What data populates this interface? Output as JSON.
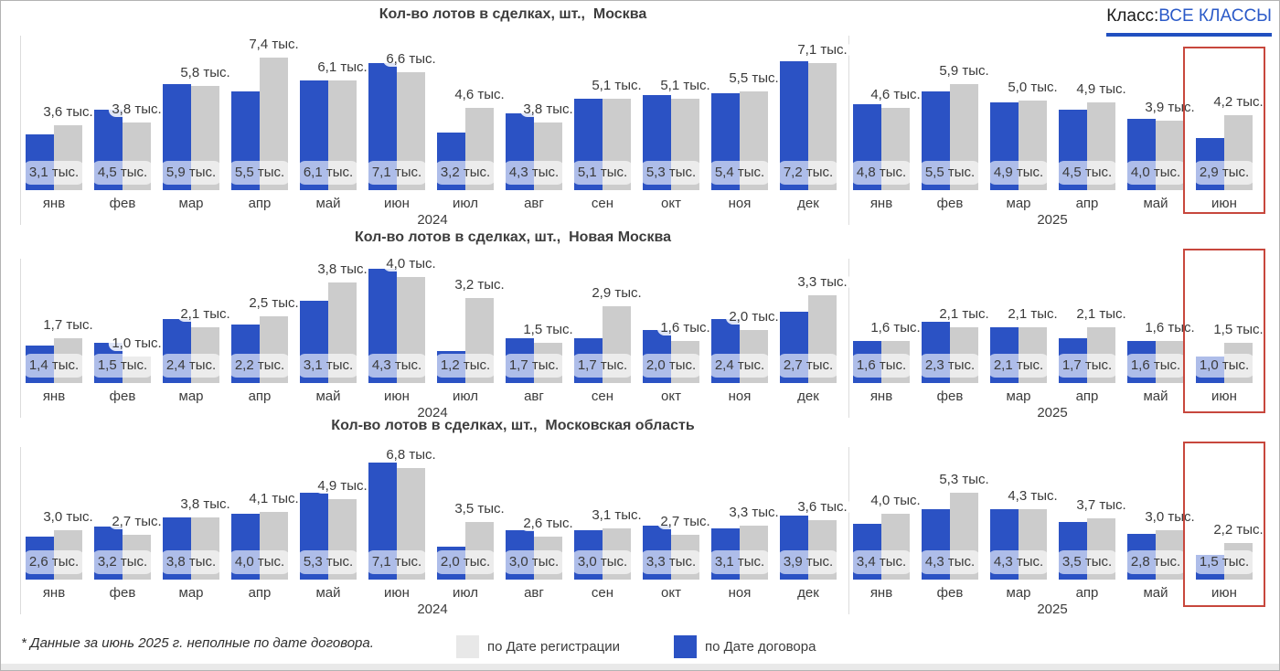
{
  "header": {
    "class_label": "Класс:",
    "class_value": "ВСЕ КЛАССЫ",
    "accent_color": "#2b52c4"
  },
  "footer": {
    "footnote": "* Данные за июнь 2025 г. неполные по дате договора.",
    "legend": [
      {
        "label": "по Дате регистрации",
        "color": "#e8e8e8"
      },
      {
        "label": "по Дате договора",
        "color": "#2b52c4"
      }
    ]
  },
  "unit_suffix": " тыс.",
  "highlight": {
    "month_index": 17,
    "note": "июнь 2025 выделен красной рамкой",
    "color": "#c7473d"
  },
  "chart_data": [
    {
      "type": "bar",
      "title": "Кол-во лотов в сделках, шт.,  Москва",
      "categories": [
        "янв",
        "фев",
        "мар",
        "апр",
        "май",
        "июн",
        "июл",
        "авг",
        "сен",
        "окт",
        "ноя",
        "дек",
        "янв",
        "фев",
        "мар",
        "апр",
        "май",
        "июн"
      ],
      "year_groups": [
        {
          "label": "2024",
          "months": 12
        },
        {
          "label": "2025",
          "months": 6
        }
      ],
      "value_suffix": " тыс.",
      "series": [
        {
          "name": "по Дате договора",
          "color": "#2b52c4",
          "values": [
            3.1,
            4.5,
            5.9,
            5.5,
            6.1,
            7.1,
            3.2,
            4.3,
            5.1,
            5.3,
            5.4,
            7.2,
            4.8,
            5.5,
            4.9,
            4.5,
            4.0,
            2.9
          ]
        },
        {
          "name": "по Дате регистрации",
          "color": "#cccccc",
          "values": [
            3.6,
            3.8,
            5.8,
            7.4,
            6.1,
            6.6,
            4.6,
            3.8,
            5.1,
            5.1,
            5.5,
            7.1,
            4.6,
            5.9,
            5.0,
            4.9,
            3.9,
            4.2
          ]
        }
      ]
    },
    {
      "type": "bar",
      "title": "Кол-во лотов в сделках, шт.,  Новая Москва",
      "categories": [
        "янв",
        "фев",
        "мар",
        "апр",
        "май",
        "июн",
        "июл",
        "авг",
        "сен",
        "окт",
        "ноя",
        "дек",
        "янв",
        "фев",
        "мар",
        "апр",
        "май",
        "июн"
      ],
      "year_groups": [
        {
          "label": "2024",
          "months": 12
        },
        {
          "label": "2025",
          "months": 6
        }
      ],
      "value_suffix": " тыс.",
      "series": [
        {
          "name": "по Дате договора",
          "color": "#2b52c4",
          "values": [
            1.4,
            1.5,
            2.4,
            2.2,
            3.1,
            4.3,
            1.2,
            1.7,
            1.7,
            2.0,
            2.4,
            2.7,
            1.6,
            2.3,
            2.1,
            1.7,
            1.6,
            1.0
          ]
        },
        {
          "name": "по Дате регистрации",
          "color": "#cccccc",
          "values": [
            1.7,
            1.0,
            2.1,
            2.5,
            3.8,
            4.0,
            3.2,
            1.5,
            2.9,
            1.6,
            2.0,
            3.3,
            1.6,
            2.1,
            2.1,
            2.1,
            1.6,
            1.5
          ]
        }
      ]
    },
    {
      "type": "bar",
      "title": "Кол-во лотов в сделках, шт.,  Московская область",
      "categories": [
        "янв",
        "фев",
        "мар",
        "апр",
        "май",
        "июн",
        "июл",
        "авг",
        "сен",
        "окт",
        "ноя",
        "дек",
        "янв",
        "фев",
        "мар",
        "апр",
        "май",
        "июн"
      ],
      "year_groups": [
        {
          "label": "2024",
          "months": 12
        },
        {
          "label": "2025",
          "months": 6
        }
      ],
      "value_suffix": " тыс.",
      "series": [
        {
          "name": "по Дате договора",
          "color": "#2b52c4",
          "values": [
            2.6,
            3.2,
            3.8,
            4.0,
            5.3,
            7.1,
            2.0,
            3.0,
            3.0,
            3.3,
            3.1,
            3.9,
            3.4,
            4.3,
            4.3,
            3.5,
            2.8,
            1.5
          ]
        },
        {
          "name": "по Дате регистрации",
          "color": "#cccccc",
          "values": [
            3.0,
            2.7,
            3.8,
            4.1,
            4.9,
            6.8,
            3.5,
            2.6,
            3.1,
            2.7,
            3.3,
            3.6,
            4.0,
            5.3,
            4.3,
            3.7,
            3.0,
            2.2
          ]
        }
      ]
    }
  ]
}
